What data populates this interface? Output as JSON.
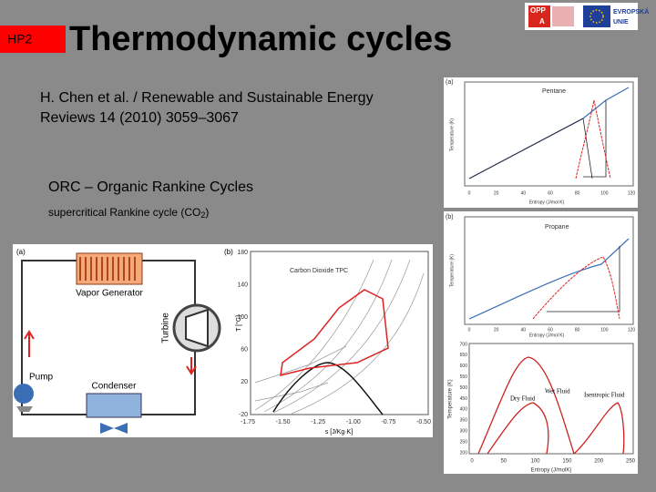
{
  "header": {
    "tag": "HP2",
    "title": "Thermodynamic cycles"
  },
  "logo": {
    "op": "OPP",
    "a": "A",
    "eu_line1": "EVROPSKÁ",
    "eu_line2": "UNIE"
  },
  "citation": [
    "H. Chen et al. / Renewable and Sustainable Energy",
    "Reviews 14 (2010) 3059–3067"
  ],
  "section": {
    "title": "ORC – Organic Rankine Cycles",
    "subtitle": {
      "before": "supercritical Rankine cycle (CO",
      "sub": "2",
      "after": ")"
    }
  },
  "figure_left": {
    "panel_a": "(a)",
    "panel_b": "(b)",
    "components": {
      "generator": "Vapor Generator",
      "turbine": "Turbine",
      "pump": "Pump",
      "condenser": "Condenser"
    },
    "chart": {
      "title": "Carbon Dioxide TPC",
      "y_label": "T [°C]",
      "x_label": "s [J/Kg·K]",
      "yticks": [
        "180",
        "140",
        "100",
        "60",
        "20",
        "-20"
      ],
      "xticks": [
        "-1.75",
        "-1.50",
        "-1.25",
        "-1.00",
        "-0.75",
        "-0.50"
      ]
    }
  },
  "figure_right": {
    "top": {
      "panel": "(a)",
      "fluid": "Pentane",
      "x_label": "Entropy (J/mol K)",
      "y_label": "Temperature (K)",
      "xticks": [
        "0",
        "20",
        "40",
        "60",
        "80",
        "100",
        "120"
      ]
    },
    "middle": {
      "panel": "(b)",
      "fluid": "Propane",
      "x_label": "Entropy (J/mol K)",
      "y_label": "Temperature (K)",
      "xticks": [
        "0",
        "20",
        "40",
        "60",
        "80",
        "100",
        "120"
      ]
    },
    "bottom": {
      "wet": "Wet Fluid",
      "dry": "Dry Fluid",
      "isentropic": "Isentropic Fluid",
      "x_label": "Entropy (J/molK)",
      "y_label": "Temperature (K)",
      "yticks": [
        "700",
        "650",
        "600",
        "550",
        "500",
        "450",
        "400",
        "350",
        "300",
        "250",
        "200"
      ],
      "xticks": [
        "0",
        "50",
        "100",
        "150",
        "200",
        "250"
      ]
    }
  }
}
